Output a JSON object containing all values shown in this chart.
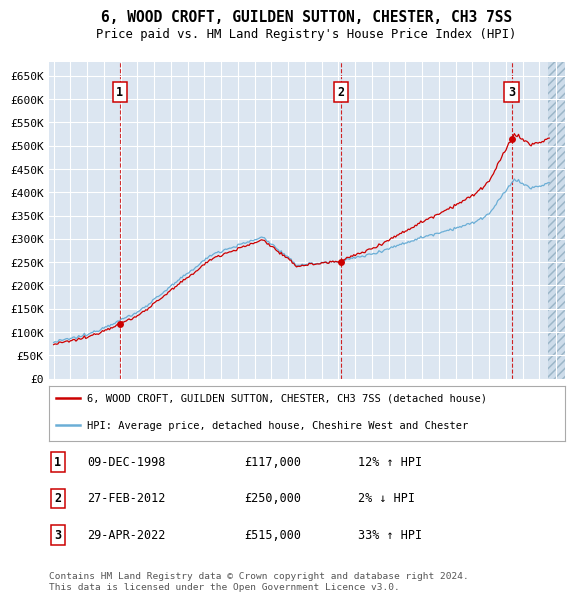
{
  "title": "6, WOOD CROFT, GUILDEN SUTTON, CHESTER, CH3 7SS",
  "subtitle": "Price paid vs. HM Land Registry's House Price Index (HPI)",
  "ylabel_ticks": [
    "£0",
    "£50K",
    "£100K",
    "£150K",
    "£200K",
    "£250K",
    "£300K",
    "£350K",
    "£400K",
    "£450K",
    "£500K",
    "£550K",
    "£600K",
    "£650K"
  ],
  "ytick_values": [
    0,
    50000,
    100000,
    150000,
    200000,
    250000,
    300000,
    350000,
    400000,
    450000,
    500000,
    550000,
    600000,
    650000
  ],
  "ylim": [
    0,
    680000
  ],
  "xlim_start": 1994.7,
  "xlim_end": 2025.5,
  "background_color": "#dce6f1",
  "grid_color": "#ffffff",
  "hpi_color": "#6baed6",
  "price_color": "#cc0000",
  "purchases": [
    {
      "date_num": 1998.94,
      "price": 117000,
      "label": "1",
      "pct": "12%",
      "dir": "↑",
      "date_str": "09-DEC-1998"
    },
    {
      "date_num": 2012.15,
      "price": 250000,
      "label": "2",
      "pct": "2%",
      "dir": "↓",
      "date_str": "27-FEB-2012"
    },
    {
      "date_num": 2022.33,
      "price": 515000,
      "label": "3",
      "pct": "33%",
      "dir": "↑",
      "date_str": "29-APR-2022"
    }
  ],
  "legend1": "6, WOOD CROFT, GUILDEN SUTTON, CHESTER, CH3 7SS (detached house)",
  "legend2": "HPI: Average price, detached house, Cheshire West and Chester",
  "footer": "Contains HM Land Registry data © Crown copyright and database right 2024.\nThis data is licensed under the Open Government Licence v3.0.",
  "data_end_year": 2024.5,
  "hatch_color": "#c8d8e8"
}
